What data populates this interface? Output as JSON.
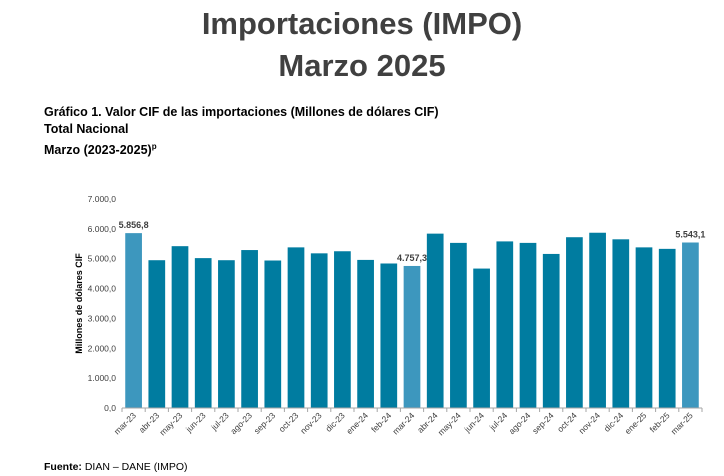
{
  "header": {
    "title_line1": "Importaciones (IMPO)",
    "title_line2": "Marzo 2025"
  },
  "subtitle": {
    "line1": "Gráfico 1. Valor CIF de las importaciones (Millones de dólares CIF)",
    "line2": "Total Nacional",
    "line3": "Marzo (2023-2025)",
    "line3_sup": "p"
  },
  "footer": {
    "label": "Fuente:",
    "text": " DIAN – DANE (IMPO)"
  },
  "chart_data": {
    "type": "bar",
    "title": "",
    "xlabel": "",
    "ylabel": "Millones de dólares CIF",
    "ylim": [
      0,
      7000
    ],
    "yticks": [
      0,
      1000,
      2000,
      3000,
      4000,
      5000,
      6000,
      7000
    ],
    "ytick_labels": [
      "0,0",
      "1.000,0",
      "2.000,0",
      "3.000,0",
      "4.000,0",
      "5.000,0",
      "6.000,0",
      "7.000,0"
    ],
    "grid": false,
    "categories": [
      "mar-23",
      "abr-23",
      "may-23",
      "jun-23",
      "jul-23",
      "ago-23",
      "sep-23",
      "oct-23",
      "nov-23",
      "dic-23",
      "ene-24",
      "feb-24",
      "mar-24",
      "abr-24",
      "may-24",
      "jun-24",
      "jul-24",
      "ago-24",
      "sep-24",
      "oct-24",
      "nov-24",
      "dic-24",
      "ene-25",
      "feb-25",
      "mar-25"
    ],
    "values": [
      5856.8,
      4950,
      5420,
      5020,
      4950,
      5290,
      4940,
      5380,
      5180,
      5250,
      4960,
      4840,
      4757.3,
      5840,
      5530,
      4670,
      5580,
      5530,
      5160,
      5720,
      5870,
      5650,
      5380,
      5330,
      5543.1
    ],
    "highlight_categories": [
      "mar-23",
      "mar-24",
      "mar-25"
    ],
    "data_labels": [
      {
        "category": "mar-23",
        "text": "5.856,8"
      },
      {
        "category": "mar-24",
        "text": "4.757,3"
      },
      {
        "category": "mar-25",
        "text": "5.543,1"
      }
    ],
    "colors": {
      "bar": "#007ca0",
      "highlight": "#3d97be",
      "axis": "#a6a6a6"
    }
  }
}
